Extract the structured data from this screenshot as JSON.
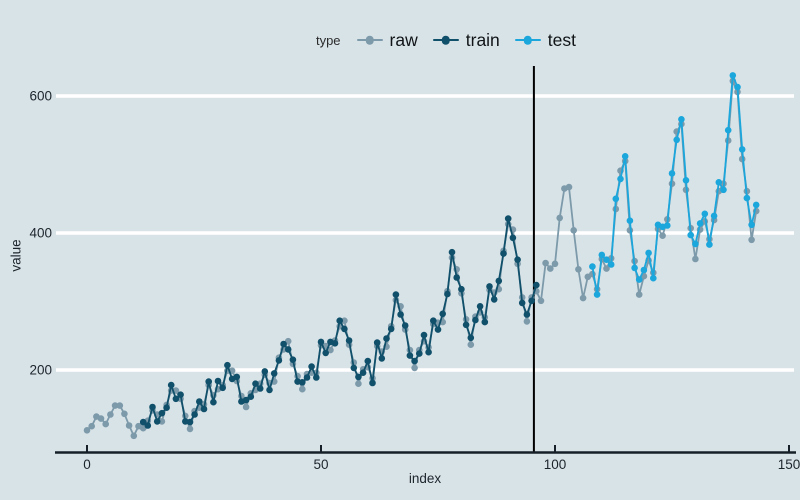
{
  "legend": {
    "title": "type",
    "items": [
      {
        "label": "raw",
        "color": "#7d9aaa"
      },
      {
        "label": "train",
        "color": "#11506a"
      },
      {
        "label": "test",
        "color": "#1ba6dc"
      }
    ]
  },
  "axes": {
    "x_label": "index",
    "y_label": "value",
    "x_ticks": [
      0,
      50,
      100,
      150
    ],
    "y_ticks": [
      200,
      400,
      600
    ]
  },
  "colors": {
    "background": "#d8e3e8",
    "gridline": "#ffffff",
    "axis_line": "#161f27",
    "split_line": "#000000",
    "text": "#1d252c"
  },
  "chart_data": {
    "type": "line",
    "title": "",
    "xlabel": "index",
    "ylabel": "value",
    "xlim": [
      -7,
      152
    ],
    "ylim": [
      78,
      645
    ],
    "x_ticks": [
      0,
      50,
      100,
      150
    ],
    "y_ticks": [
      200,
      400,
      600
    ],
    "grid": "horizontal white major gridlines only",
    "legend_position": "top-center",
    "legend_title": "type",
    "vline_x": 95.5,
    "series": [
      {
        "name": "raw",
        "color": "#7d9aaa",
        "x_start": 0,
        "values": [
          112,
          118,
          132,
          129,
          121,
          135,
          148,
          148,
          136,
          119,
          104,
          118,
          115,
          126,
          141,
          135,
          125,
          149,
          170,
          170,
          158,
          133,
          114,
          140,
          145,
          150,
          178,
          163,
          172,
          178,
          199,
          199,
          184,
          162,
          146,
          166,
          171,
          180,
          193,
          181,
          183,
          218,
          230,
          242,
          209,
          191,
          172,
          194,
          196,
          196,
          236,
          235,
          229,
          243,
          264,
          272,
          237,
          211,
          180,
          201,
          204,
          188,
          235,
          227,
          234,
          264,
          302,
          293,
          259,
          229,
          203,
          229,
          242,
          233,
          267,
          269,
          270,
          315,
          364,
          347,
          312,
          274,
          237,
          278,
          284,
          277,
          317,
          313,
          318,
          374,
          413,
          405,
          355,
          306,
          271,
          306,
          315,
          301,
          356,
          348,
          355,
          422,
          465,
          467,
          404,
          347,
          305,
          336,
          340,
          318,
          362,
          348,
          363,
          435,
          491,
          505,
          404,
          359,
          310,
          337,
          360,
          342,
          406,
          396,
          420,
          472,
          548,
          559,
          463,
          407,
          362,
          405,
          417,
          391,
          419,
          461,
          472,
          535,
          622,
          606,
          508,
          461,
          390,
          432
        ]
      },
      {
        "name": "train",
        "color": "#11506a",
        "x_start": 12,
        "values": [
          124,
          119,
          146,
          125,
          137,
          145,
          178,
          158,
          164,
          125,
          124,
          135,
          154,
          143,
          183,
          153,
          184,
          174,
          207,
          187,
          190,
          154,
          156,
          161,
          180,
          173,
          198,
          171,
          195,
          214,
          238,
          230,
          215,
          183,
          182,
          189,
          205,
          189,
          241,
          225,
          241,
          239,
          272,
          260,
          243,
          203,
          190,
          196,
          213,
          181,
          240,
          217,
          246,
          260,
          310,
          281,
          265,
          221,
          213,
          224,
          251,
          226,
          272,
          259,
          282,
          311,
          372,
          335,
          318,
          266,
          247,
          273,
          293,
          270,
          322,
          303,
          330,
          370,
          421,
          393,
          361,
          298,
          281,
          301,
          324
        ]
      },
      {
        "name": "test",
        "color": "#1ba6dc",
        "x_start": 108,
        "values": [
          351,
          310,
          368,
          361,
          354,
          450,
          479,
          512,
          418,
          349,
          332,
          346,
          371,
          334,
          412,
          409,
          411,
          487,
          536,
          566,
          477,
          397,
          384,
          414,
          428,
          383,
          425,
          474,
          463,
          550,
          630,
          613,
          522,
          451,
          412,
          441
        ]
      }
    ]
  }
}
